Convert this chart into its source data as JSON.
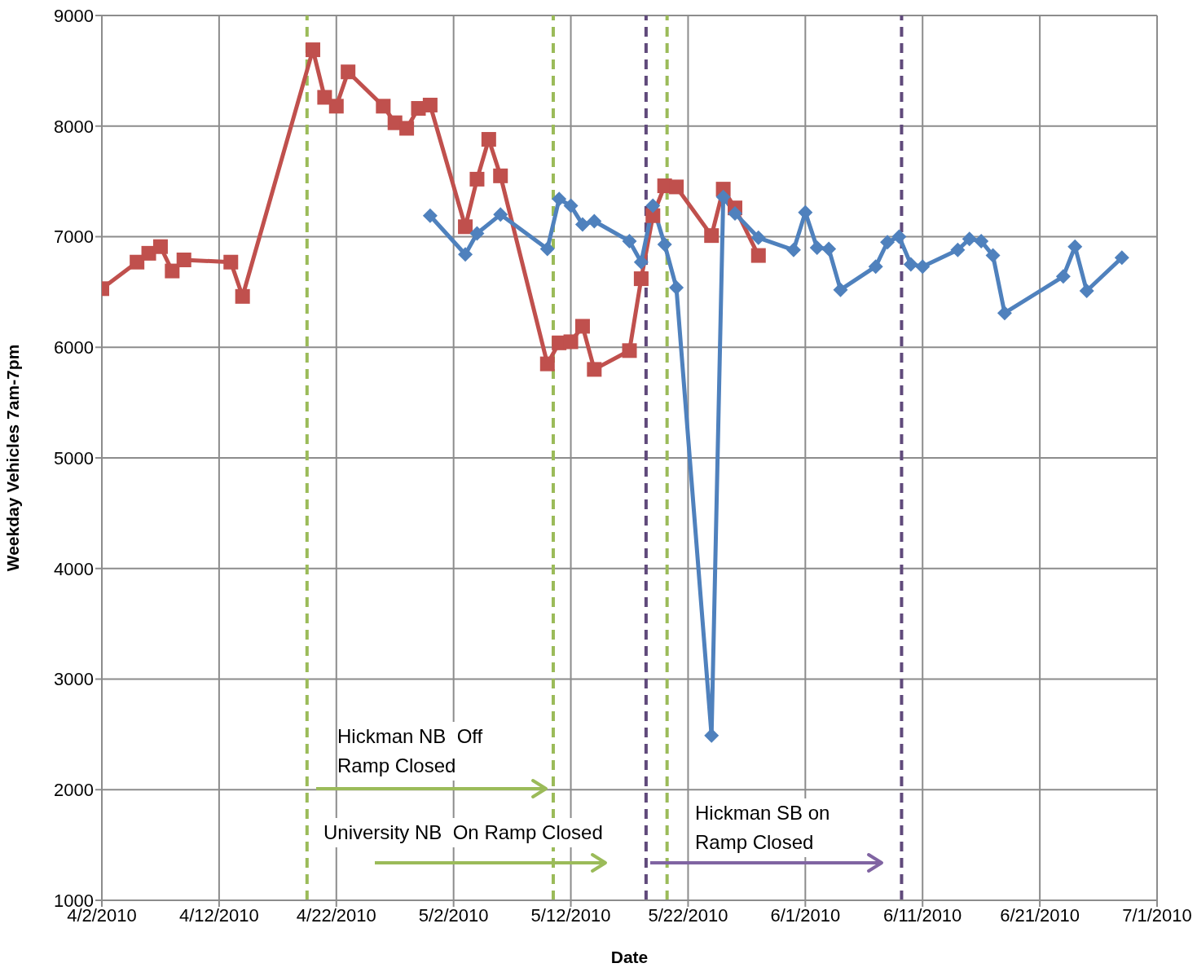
{
  "chart_data": {
    "type": "line",
    "xlabel": "Date",
    "ylabel": "Weekday Vehicles 7am-7pm",
    "xlim": [
      "2010-04-02",
      "2010-07-01"
    ],
    "xticks": [
      {
        "value": "2010-04-02",
        "label": "4/2/2010"
      },
      {
        "value": "2010-04-12",
        "label": "4/12/2010"
      },
      {
        "value": "2010-04-22",
        "label": "4/22/2010"
      },
      {
        "value": "2010-05-02",
        "label": "5/2/2010"
      },
      {
        "value": "2010-05-12",
        "label": "5/12/2010"
      },
      {
        "value": "2010-05-22",
        "label": "5/22/2010"
      },
      {
        "value": "2010-06-01",
        "label": "6/1/2010"
      },
      {
        "value": "2010-06-11",
        "label": "6/11/2010"
      },
      {
        "value": "2010-06-21",
        "label": "6/21/2010"
      },
      {
        "value": "2010-07-01",
        "label": "7/1/2010"
      }
    ],
    "ylim": [
      1000,
      9000
    ],
    "yticks": [
      1000,
      2000,
      3000,
      4000,
      5000,
      6000,
      7000,
      8000,
      9000
    ],
    "grid": true,
    "line_style": "solid",
    "series": [
      {
        "color": "#c0504d",
        "marker": "square",
        "x": [
          "2010-04-02",
          "2010-04-05",
          "2010-04-06",
          "2010-04-07",
          "2010-04-08",
          "2010-04-09",
          "2010-04-13",
          "2010-04-14",
          "2010-04-20",
          "2010-04-21",
          "2010-04-22",
          "2010-04-23",
          "2010-04-26",
          "2010-04-27",
          "2010-04-28",
          "2010-04-29",
          "2010-04-30",
          "2010-05-03",
          "2010-05-04",
          "2010-05-05",
          "2010-05-06",
          "2010-05-10",
          "2010-05-11",
          "2010-05-12",
          "2010-05-13",
          "2010-05-14",
          "2010-05-17",
          "2010-05-18",
          "2010-05-19",
          "2010-05-20",
          "2010-05-21",
          "2010-05-24",
          "2010-05-25",
          "2010-05-26",
          "2010-05-28"
        ],
        "values": [
          6530,
          6770,
          6850,
          6910,
          6690,
          6790,
          6770,
          6460,
          8690,
          8260,
          8180,
          8490,
          8180,
          8030,
          7980,
          8160,
          8190,
          7090,
          7520,
          7880,
          7550,
          5850,
          6040,
          6050,
          6190,
          5800,
          5970,
          6620,
          7190,
          7460,
          7450,
          7010,
          7430,
          7260,
          6830
        ]
      },
      {
        "color": "#4f81bd",
        "marker": "diamond",
        "x": [
          "2010-04-30",
          "2010-05-03",
          "2010-05-04",
          "2010-05-06",
          "2010-05-10",
          "2010-05-11",
          "2010-05-12",
          "2010-05-13",
          "2010-05-14",
          "2010-05-17",
          "2010-05-18",
          "2010-05-19",
          "2010-05-20",
          "2010-05-21",
          "2010-05-24",
          "2010-05-25",
          "2010-05-26",
          "2010-05-28",
          "2010-05-31",
          "2010-06-01",
          "2010-06-02",
          "2010-06-03",
          "2010-06-04",
          "2010-06-07",
          "2010-06-08",
          "2010-06-09",
          "2010-06-10",
          "2010-06-11",
          "2010-06-14",
          "2010-06-15",
          "2010-06-16",
          "2010-06-17",
          "2010-06-18",
          "2010-06-23",
          "2010-06-24",
          "2010-06-25",
          "2010-06-28"
        ],
        "values": [
          7190,
          6840,
          7030,
          7200,
          6890,
          7340,
          7280,
          7110,
          7140,
          6960,
          6770,
          7280,
          6930,
          6540,
          2490,
          7360,
          7210,
          6990,
          6880,
          7220,
          6900,
          6890,
          6520,
          6730,
          6950,
          7000,
          6750,
          6730,
          6880,
          6980,
          6960,
          6830,
          6310,
          6640,
          6910,
          6510,
          6810
        ]
      }
    ],
    "ref_lines": [
      {
        "axis": "x",
        "value": "2010-04-19T12:00",
        "color": "#9bbb59",
        "line_style": "dashed"
      },
      {
        "axis": "x",
        "value": "2010-05-10T12:00",
        "color": "#9bbb59",
        "line_style": "dashed"
      },
      {
        "axis": "x",
        "value": "2010-05-18T10:00",
        "color": "#604a7b",
        "line_style": "dashed"
      },
      {
        "axis": "x",
        "value": "2010-05-20T05:00",
        "color": "#9bbb59",
        "line_style": "dashed"
      },
      {
        "axis": "x",
        "value": "2010-06-09T05:00",
        "color": "#604a7b",
        "line_style": "dashed"
      }
    ],
    "annotations": [
      "Hickman NB  Off Ramp Closed",
      "University NB  On Ramp Closed",
      "Hickman SB on Ramp Closed"
    ]
  }
}
